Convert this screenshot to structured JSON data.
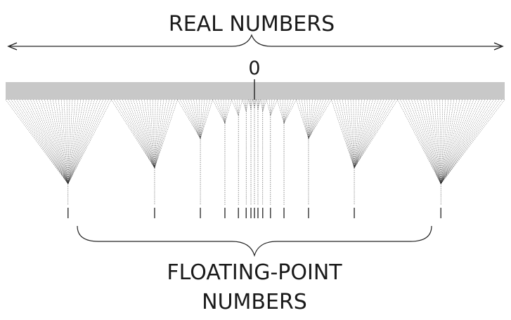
{
  "top_label": "REAL NUMBERS",
  "zero_label": "0",
  "bottom_label_line1": "FLOATING-POINT",
  "bottom_label_line2": "NUMBERS",
  "colors": {
    "band": "#c8c8c8",
    "lines": "#222222",
    "text": "#1a1a1a"
  },
  "float_values": [
    -2,
    -1,
    -0.5,
    -0.25,
    -0.125,
    -0.0625,
    -0.03125,
    0,
    0.03125,
    0.0625,
    0.125,
    0.25,
    0.5,
    1,
    2
  ]
}
